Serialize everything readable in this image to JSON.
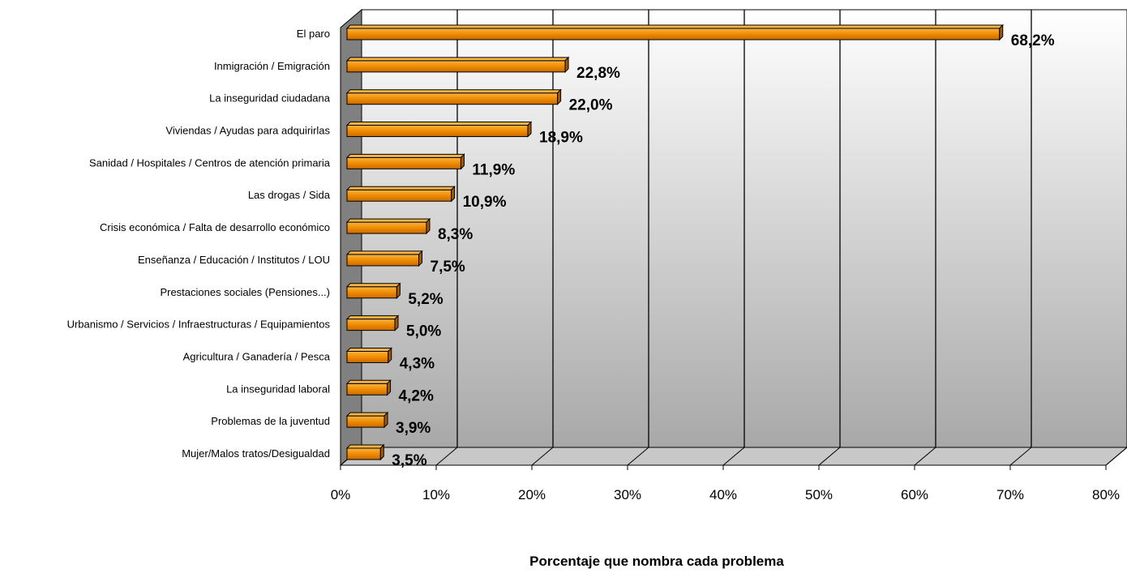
{
  "chart_data": {
    "type": "bar",
    "orientation": "horizontal",
    "categories": [
      "El paro",
      "Inmigración / Emigración",
      "La inseguridad ciudadana",
      "Viviendas / Ayudas para adquirirlas",
      "Sanidad / Hospitales / Centros de atención primaria",
      "Las drogas / Sida",
      "Crisis económica / Falta de desarrollo económico",
      "Enseñanza / Educación / Institutos / LOU",
      "Prestaciones sociales (Pensiones...)",
      "Urbanismo / Servicios / Infraestructuras / Equipamientos",
      "Agricultura / Ganadería / Pesca",
      "La inseguridad laboral",
      "Problemas de la juventud",
      "Mujer/Malos tratos/Desigualdad"
    ],
    "values": [
      68.2,
      22.8,
      22.0,
      18.9,
      11.9,
      10.9,
      8.3,
      7.5,
      5.2,
      5.0,
      4.3,
      4.2,
      3.9,
      3.5
    ],
    "value_labels": [
      "68,2%",
      "22,8%",
      "22,0%",
      "18,9%",
      "11,9%",
      "10,9%",
      "8,3%",
      "7,5%",
      "5,2%",
      "5,0%",
      "4,3%",
      "4,2%",
      "3,9%",
      "3,5%"
    ],
    "x_ticks": [
      "0%",
      "10%",
      "20%",
      "30%",
      "40%",
      "50%",
      "60%",
      "70%",
      "80%"
    ],
    "xlim": [
      0,
      80
    ],
    "xlabel": "Porcentaje que nombra cada problema",
    "ylabel": "",
    "title": "",
    "grid": true,
    "bar_color": "#f08c00",
    "bar_edge_color": "#000000"
  }
}
